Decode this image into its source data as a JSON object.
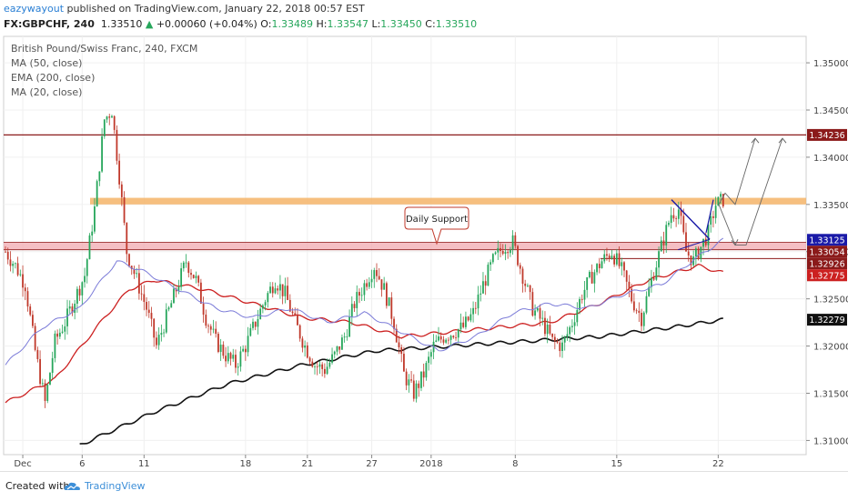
{
  "header": {
    "author": "eazywayout",
    "published": " published on TradingView.com, January 22, 2018 00:57 EST",
    "symbol": "FX:GBPCHF, 240",
    "last": "1.33510",
    "arrow": "▲",
    "change": "+0.00060 (+0.04%)",
    "o_label": "O:",
    "o_val": "1.33489",
    "h_label": "H:",
    "h_val": "1.33547",
    "l_label": "L:",
    "l_val": "1.33450",
    "c_label": "C:",
    "c_val": "1.33510"
  },
  "legend": {
    "title": "British Pound/Swiss Franc, 240, FXCM",
    "ma50": "MA (50, close)",
    "ema200": "EMA (200, close)",
    "ma20": "MA (20, close)"
  },
  "annotation": {
    "daily_support": "Daily Support"
  },
  "footer": {
    "created": "Created with",
    "brand": "TradingView"
  },
  "colors": {
    "up": "#26a65b",
    "down": "#c0392b",
    "ma50": "#cc2020",
    "ema200": "#111111",
    "ma20": "#7b7bd8",
    "resistance_line": "#8b1a1a",
    "resistance_zone": "#f5b469",
    "support_zone": "#f2a9b0",
    "triangle": "#1a1aa8"
  },
  "chart_data": {
    "type": "candlestick",
    "symbol": "FX:GBPCHF",
    "timeframe": "240",
    "x_tick_labels": [
      "Dec",
      "6",
      "11",
      "18",
      "21",
      "27",
      "2018",
      "8",
      "15",
      "22"
    ],
    "y_tick_labels": [
      "1.35000",
      "1.34500",
      "1.34000",
      "1.33500",
      "1.33000",
      "1.32500",
      "1.32000",
      "1.31500",
      "1.31000"
    ],
    "ylim": [
      1.3085,
      1.3528
    ],
    "price_labels": [
      {
        "value": 1.34236,
        "text": "1.34236",
        "color": "#8b1a1a"
      },
      {
        "value": 1.33125,
        "text": "1.33125",
        "color": "#1a1aa8"
      },
      {
        "value": 1.33054,
        "text": "1.33054",
        "color": "#8b1a1a"
      },
      {
        "value": 1.32926,
        "text": "1.32926",
        "color": "#8b1a1a"
      },
      {
        "value": 1.32775,
        "text": "1.32775",
        "color": "#cc2020"
      },
      {
        "value": 1.32279,
        "text": "1.32279",
        "color": "#111111"
      }
    ],
    "levels": {
      "resistance_line": 1.34236,
      "resistance_zone": [
        1.335,
        1.3357
      ],
      "support_zone": [
        1.3302,
        1.331
      ],
      "lower_line": 1.32926
    },
    "close_path": [
      [
        0,
        1.33
      ],
      [
        4,
        1.3285
      ],
      [
        8,
        1.3265
      ],
      [
        12,
        1.3195
      ],
      [
        16,
        1.314
      ],
      [
        20,
        1.3205
      ],
      [
        24,
        1.3225
      ],
      [
        28,
        1.325
      ],
      [
        32,
        1.3275
      ],
      [
        36,
        1.3345
      ],
      [
        40,
        1.344
      ],
      [
        43,
        1.345
      ],
      [
        46,
        1.338
      ],
      [
        49,
        1.33
      ],
      [
        53,
        1.327
      ],
      [
        57,
        1.324
      ],
      [
        61,
        1.32
      ],
      [
        65,
        1.323
      ],
      [
        69,
        1.326
      ],
      [
        73,
        1.329
      ],
      [
        77,
        1.327
      ],
      [
        81,
        1.323
      ],
      [
        85,
        1.3205
      ],
      [
        89,
        1.319
      ],
      [
        93,
        1.318
      ],
      [
        97,
        1.32
      ],
      [
        101,
        1.3225
      ],
      [
        105,
        1.325
      ],
      [
        109,
        1.327
      ],
      [
        113,
        1.3255
      ],
      [
        117,
        1.3225
      ],
      [
        121,
        1.32
      ],
      [
        125,
        1.318
      ],
      [
        129,
        1.3175
      ],
      [
        133,
        1.319
      ],
      [
        137,
        1.321
      ],
      [
        141,
        1.3245
      ],
      [
        145,
        1.3265
      ],
      [
        149,
        1.3285
      ],
      [
        153,
        1.326
      ],
      [
        157,
        1.3225
      ],
      [
        161,
        1.317
      ],
      [
        165,
        1.315
      ],
      [
        169,
        1.317
      ],
      [
        173,
        1.32
      ],
      [
        177,
        1.321
      ],
      [
        181,
        1.3215
      ],
      [
        185,
        1.322
      ],
      [
        189,
        1.3235
      ],
      [
        193,
        1.3265
      ],
      [
        197,
        1.329
      ],
      [
        201,
        1.3305
      ],
      [
        205,
        1.331
      ],
      [
        209,
        1.3275
      ],
      [
        213,
        1.324
      ],
      [
        217,
        1.3225
      ],
      [
        221,
        1.3205
      ],
      [
        225,
        1.32
      ],
      [
        229,
        1.3225
      ],
      [
        233,
        1.3255
      ],
      [
        237,
        1.3275
      ],
      [
        241,
        1.329
      ],
      [
        245,
        1.33
      ],
      [
        249,
        1.328
      ],
      [
        253,
        1.325
      ],
      [
        257,
        1.323
      ],
      [
        261,
        1.327
      ],
      [
        265,
        1.3305
      ],
      [
        269,
        1.334
      ],
      [
        272,
        1.3345
      ],
      [
        275,
        1.33
      ],
      [
        278,
        1.329
      ],
      [
        281,
        1.3305
      ],
      [
        284,
        1.332
      ],
      [
        287,
        1.335
      ],
      [
        290,
        1.3355
      ]
    ],
    "ma50_path": [
      [
        0,
        1.314
      ],
      [
        20,
        1.3165
      ],
      [
        40,
        1.323
      ],
      [
        50,
        1.326
      ],
      [
        60,
        1.327
      ],
      [
        80,
        1.326
      ],
      [
        100,
        1.3245
      ],
      [
        120,
        1.323
      ],
      [
        140,
        1.3225
      ],
      [
        160,
        1.321
      ],
      [
        180,
        1.3215
      ],
      [
        200,
        1.322
      ],
      [
        220,
        1.3225
      ],
      [
        240,
        1.3245
      ],
      [
        260,
        1.327
      ],
      [
        280,
        1.3285
      ],
      [
        290,
        1.32775
      ]
    ],
    "ema200_path": [
      [
        30,
        1.3095
      ],
      [
        60,
        1.313
      ],
      [
        90,
        1.316
      ],
      [
        120,
        1.318
      ],
      [
        150,
        1.3195
      ],
      [
        180,
        1.32
      ],
      [
        210,
        1.3205
      ],
      [
        240,
        1.321
      ],
      [
        270,
        1.322
      ],
      [
        290,
        1.32279
      ]
    ],
    "ma20_path": [
      [
        0,
        1.318
      ],
      [
        15,
        1.322
      ],
      [
        30,
        1.324
      ],
      [
        45,
        1.329
      ],
      [
        55,
        1.328
      ],
      [
        70,
        1.326
      ],
      [
        85,
        1.324
      ],
      [
        100,
        1.323
      ],
      [
        115,
        1.324
      ],
      [
        130,
        1.3225
      ],
      [
        145,
        1.3235
      ],
      [
        160,
        1.3215
      ],
      [
        175,
        1.3195
      ],
      [
        190,
        1.321
      ],
      [
        205,
        1.3235
      ],
      [
        220,
        1.3245
      ],
      [
        235,
        1.324
      ],
      [
        250,
        1.3255
      ],
      [
        265,
        1.3265
      ],
      [
        280,
        1.3295
      ],
      [
        290,
        1.33125
      ]
    ]
  }
}
